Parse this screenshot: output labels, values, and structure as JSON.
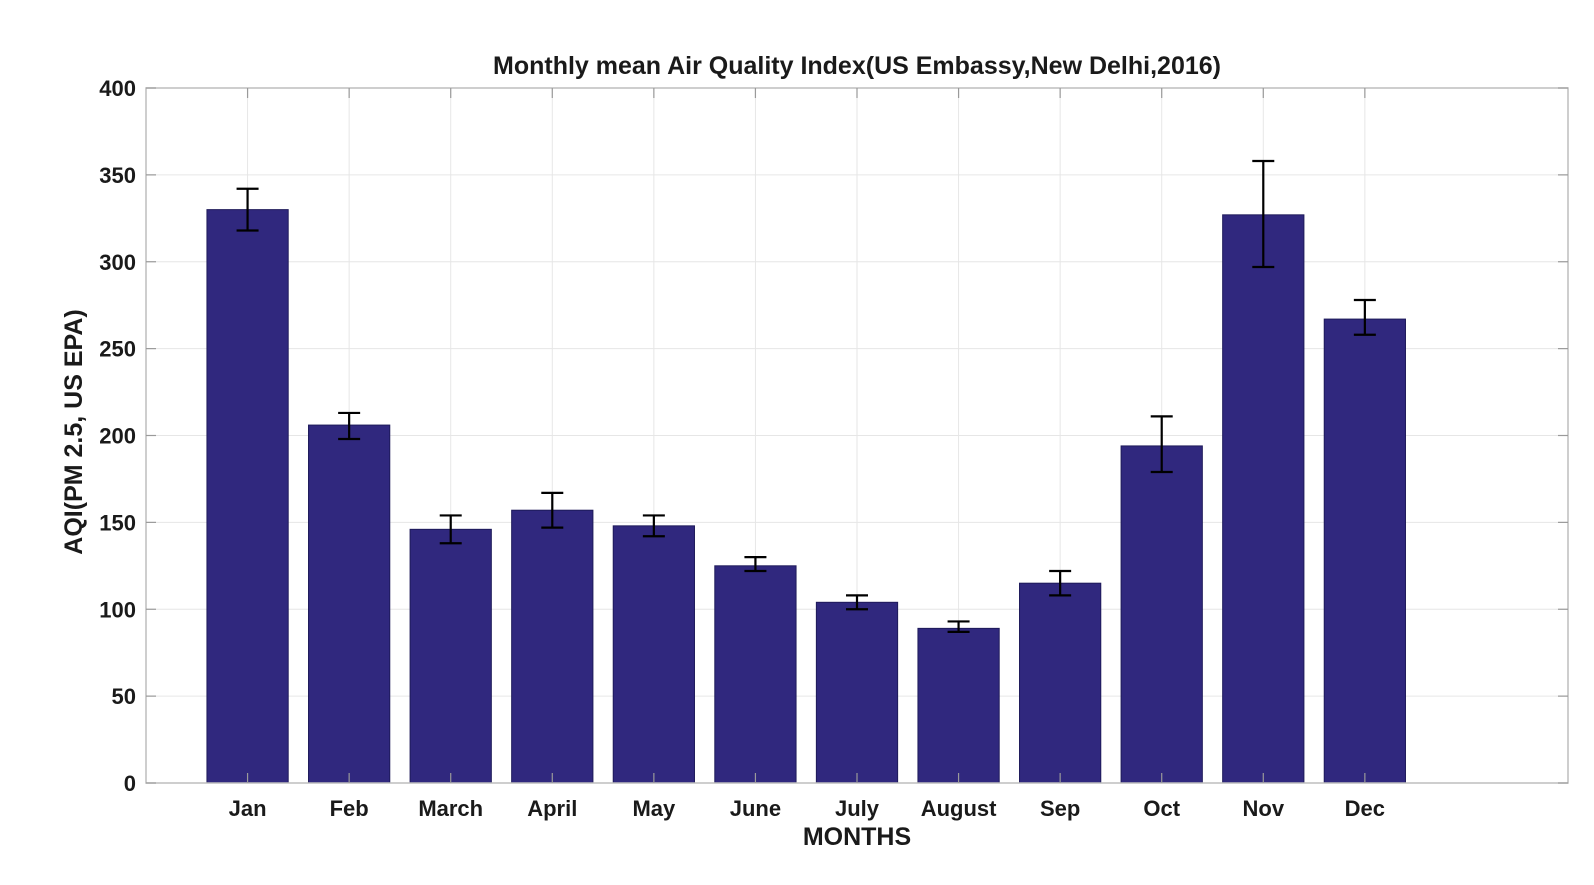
{
  "chart_data": {
    "type": "bar",
    "title": "Monthly mean Air Quality Index(US Embassy,New Delhi,2016)",
    "xlabel": "MONTHS",
    "ylabel": "AQI(PM 2.5, US EPA)",
    "ylim": [
      0,
      400
    ],
    "yticks": [
      "0",
      "50",
      "100",
      "150",
      "200",
      "250",
      "300",
      "350",
      "400"
    ],
    "xlim": [
      0,
      14
    ],
    "grid": true,
    "legend": "none",
    "bar_color": "#30287e",
    "categories": [
      "Jan",
      "Feb",
      "March",
      "April",
      "May",
      "June",
      "July",
      "August",
      "Sep",
      "Oct",
      "Nov",
      "Dec"
    ],
    "values": [
      330,
      206,
      146,
      157,
      148,
      125,
      104,
      89,
      115,
      194,
      327,
      267
    ],
    "error_low": [
      318,
      198,
      138,
      147,
      142,
      122,
      100,
      87,
      108,
      179,
      297,
      258
    ],
    "error_high": [
      342,
      213,
      154,
      167,
      154,
      130,
      108,
      93,
      122,
      211,
      358,
      278
    ]
  }
}
